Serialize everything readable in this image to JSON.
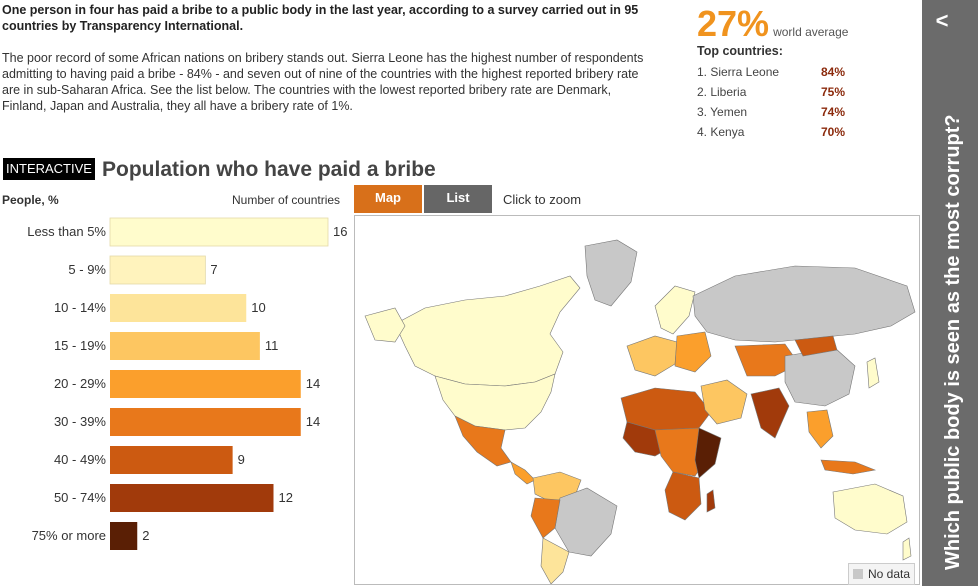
{
  "intro": {
    "headline": "One person in four has paid a bribe to a public body in the last year, according to a survey carried out in 95 countries by Transparency International.",
    "body": "The poor record of some African nations on bribery stands out. Sierra Leone has the highest number of respondents admitting to having paid a bribe - 84% - and seven out of nine of the countries with the highest reported bribery rate are in sub-Saharan Africa. See the list below. The countries with the lowest reported bribery rate are Denmark, Finland, Japan and Australia, they all have a bribery rate of 1%."
  },
  "world_average": {
    "value": "27%",
    "label": "world average"
  },
  "top_countries": {
    "title": "Top countries:",
    "items": [
      {
        "name": "1. Sierra Leone",
        "value": "84%"
      },
      {
        "name": "2. Liberia",
        "value": "75%"
      },
      {
        "name": "3. Yemen",
        "value": "74%"
      },
      {
        "name": "4. Kenya",
        "value": "70%"
      }
    ]
  },
  "side_panel": {
    "chevron": "<",
    "text": "Which public body is seen as the most corrupt?"
  },
  "badge": "INTERACTIVE",
  "tabs": {
    "map": "Map",
    "list": "List",
    "hint": "Click to zoom"
  },
  "legend": {
    "no_data": "No data",
    "no_data_color": "#c8c8c8"
  },
  "chart_data": {
    "type": "bar",
    "orientation": "horizontal",
    "title": "Population who have paid a bribe",
    "ylabel": "People, %",
    "xlabel": "Number of countries",
    "categories": [
      "Less than 5%",
      "5 - 9%",
      "10 - 14%",
      "15 - 19%",
      "20 - 29%",
      "30 - 39%",
      "40 - 49%",
      "50 - 74%",
      "75% or more"
    ],
    "values": [
      16,
      7,
      10,
      11,
      14,
      14,
      9,
      12,
      2
    ],
    "colors": [
      "#fffccc",
      "#fff3bd",
      "#fde49a",
      "#fdc661",
      "#fb9f2c",
      "#e8781b",
      "#cc5a11",
      "#a13a0b",
      "#5a1f05"
    ],
    "xlim": [
      0,
      16
    ]
  },
  "map_colors": {
    "ocean": "#ffffff",
    "no_data": "#c8c8c8",
    "low": "#fffccc",
    "mid": "#fb9f2c",
    "high": "#a13a0b"
  }
}
